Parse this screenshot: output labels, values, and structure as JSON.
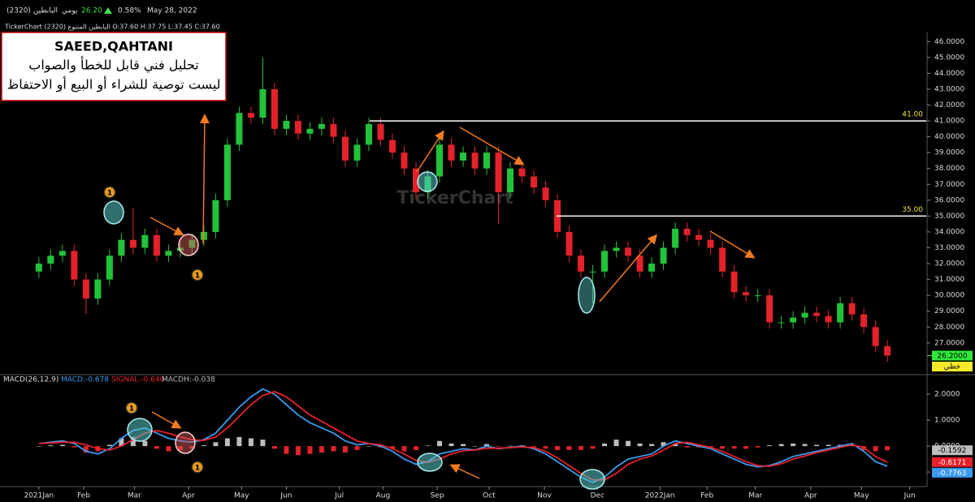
{
  "header": {
    "name": "البابطين (2320)",
    "period": "يومي",
    "price": "26.20",
    "change": "0.58%",
    "date": "May 28, 2022",
    "info": "TickerChart البابطين المتنوع (2320) O:37.60 H:37.75 L:37.45 C:37.60"
  },
  "annotations": {
    "author": "SAEED,QAHTANI",
    "line1": "تحليل فني قابل للخطأ والصواب",
    "line2": "ليست توصية للشراء أو البيع أو الاحتفاظ",
    "markers": [
      "1",
      "1",
      "1",
      "1"
    ],
    "watermark": "TickerChart"
  },
  "chart_data": [
    {
      "type": "candlestick",
      "up_color": "#22c33a",
      "down_color": "#e3222b",
      "open": [
        31.5,
        32.0,
        32.5,
        32.8,
        31.0,
        29.8,
        31.0,
        32.5,
        33.5,
        33.0,
        33.8,
        32.5,
        32.8,
        33.0,
        33.5,
        34.0,
        36.0,
        39.5,
        41.5,
        41.2,
        43.0,
        40.5,
        41.0,
        40.2,
        40.5,
        40.8,
        40.0,
        38.5,
        39.5,
        40.8,
        39.8,
        39.0,
        38.0,
        36.5,
        37.5,
        39.5,
        38.5,
        39.0,
        38.0,
        39.0,
        36.5,
        38.0,
        37.5,
        36.8,
        36.0,
        34.0,
        32.5,
        31.5,
        31.5,
        32.8,
        33.0,
        32.5,
        31.5,
        32.0,
        33.0,
        34.2,
        33.8,
        33.5,
        33.0,
        31.5,
        30.2,
        30.0,
        30.0,
        28.3,
        28.3,
        28.6,
        28.9,
        28.7,
        28.3,
        29.5,
        28.8,
        28.0,
        26.8
      ],
      "high": [
        32.4,
        32.9,
        33.2,
        33.2,
        31.4,
        31.4,
        32.9,
        33.9,
        35.5,
        34.2,
        34.2,
        33.2,
        33.4,
        33.9,
        34.4,
        36.4,
        39.9,
        41.9,
        41.9,
        45.0,
        43.4,
        41.4,
        41.4,
        40.9,
        41.2,
        41.2,
        40.4,
        39.9,
        41.2,
        41.2,
        40.2,
        39.4,
        38.4,
        37.9,
        39.9,
        39.9,
        39.4,
        39.4,
        39.4,
        39.4,
        38.4,
        38.4,
        37.9,
        37.2,
        36.4,
        34.4,
        32.9,
        31.9,
        33.2,
        33.4,
        33.4,
        32.9,
        32.4,
        33.4,
        34.6,
        34.6,
        34.2,
        33.9,
        33.4,
        31.9,
        30.6,
        30.4,
        30.4,
        28.7,
        29.0,
        29.3,
        29.3,
        29.1,
        29.9,
        29.9,
        29.2,
        28.4,
        27.2
      ],
      "low": [
        31.1,
        31.6,
        32.1,
        30.6,
        28.8,
        29.4,
        30.6,
        32.1,
        32.6,
        32.6,
        32.1,
        32.1,
        32.4,
        32.6,
        33.1,
        33.6,
        35.6,
        39.1,
        40.8,
        40.8,
        40.1,
        40.1,
        39.8,
        39.8,
        40.1,
        39.6,
        38.1,
        38.1,
        39.1,
        39.4,
        38.6,
        37.6,
        36.1,
        36.1,
        37.1,
        38.1,
        38.1,
        37.6,
        37.6,
        34.5,
        36.1,
        37.1,
        36.4,
        35.6,
        33.6,
        32.1,
        31.1,
        29.5,
        31.1,
        32.4,
        32.1,
        31.1,
        31.1,
        31.6,
        32.6,
        33.4,
        33.1,
        32.6,
        31.1,
        29.8,
        29.6,
        29.6,
        27.9,
        27.9,
        27.9,
        28.2,
        28.3,
        27.9,
        27.9,
        28.4,
        27.6,
        26.4,
        25.8
      ],
      "close": [
        32.0,
        32.5,
        32.8,
        31.0,
        29.8,
        31.0,
        32.5,
        33.5,
        33.0,
        33.8,
        32.5,
        32.8,
        33.0,
        33.5,
        34.0,
        36.0,
        39.5,
        41.5,
        41.2,
        43.0,
        40.5,
        41.0,
        40.2,
        40.5,
        40.8,
        40.0,
        38.5,
        39.5,
        40.8,
        39.8,
        39.0,
        38.0,
        36.5,
        37.5,
        39.5,
        38.5,
        39.0,
        38.0,
        39.0,
        36.5,
        38.0,
        37.5,
        36.8,
        36.0,
        34.0,
        32.5,
        31.5,
        31.5,
        32.8,
        33.0,
        32.5,
        31.5,
        32.0,
        33.0,
        34.2,
        33.8,
        33.5,
        33.0,
        31.5,
        30.2,
        30.0,
        30.0,
        28.3,
        28.3,
        28.6,
        28.9,
        28.7,
        28.3,
        29.5,
        28.8,
        28.0,
        26.8,
        26.2
      ],
      "xlim": [
        -3.3,
        75.3
      ],
      "ylim": [
        25.1,
        47.6
      ],
      "yticks": [
        {
          "value": 46,
          "label": "46.0000"
        },
        {
          "value": 45,
          "label": "45.0000"
        },
        {
          "value": 44,
          "label": "44.0000"
        },
        {
          "value": 43,
          "label": "43.0000"
        },
        {
          "value": 42,
          "label": "42.0000"
        },
        {
          "value": 41,
          "label": "41.0000"
        },
        {
          "value": 40,
          "label": "40.0000"
        },
        {
          "value": 39,
          "label": "39.0000"
        },
        {
          "value": 38,
          "label": "38.0000"
        },
        {
          "value": 37,
          "label": "37.0000"
        },
        {
          "value": 36,
          "label": "36.0000"
        },
        {
          "value": 35,
          "label": "35.0000"
        },
        {
          "value": 34,
          "label": "34.0000"
        },
        {
          "value": 33,
          "label": "33.0000"
        },
        {
          "value": 32,
          "label": "32.0000"
        },
        {
          "value": 31,
          "label": "31.0000"
        },
        {
          "value": 30,
          "label": "30.0000"
        },
        {
          "value": 29,
          "label": "29.0000"
        },
        {
          "value": 28,
          "label": "28.0000"
        },
        {
          "value": 27,
          "label": "27.0000"
        }
      ],
      "levels": [
        {
          "value": 41,
          "label": "41.00"
        },
        {
          "value": 35,
          "label": "35.00"
        }
      ],
      "last_label": "26.2000",
      "mode_label": "خطي"
    },
    {
      "type": "macd",
      "title": "MACD(26,12,9)",
      "xlim": [
        -3.3,
        75.3
      ],
      "ylim": [
        -1.56,
        2.66
      ],
      "yticks": [
        {
          "value": 2,
          "label": "2.0000"
        },
        {
          "value": 1,
          "label": "1.0000"
        },
        {
          "value": 0,
          "label": "0.0000"
        },
        {
          "value": -1,
          "label": "-1.0000"
        }
      ],
      "xticks": [
        {
          "value": 0,
          "label": "2021Jan"
        },
        {
          "value": 3.8,
          "label": "Feb"
        },
        {
          "value": 8.1,
          "label": "Mar"
        },
        {
          "value": 12.7,
          "label": "Apr"
        },
        {
          "value": 17.2,
          "label": "May"
        },
        {
          "value": 21.0,
          "label": "Jun"
        },
        {
          "value": 25.5,
          "label": "Jul"
        },
        {
          "value": 29.2,
          "label": "Aug"
        },
        {
          "value": 33.8,
          "label": "Sep"
        },
        {
          "value": 38.2,
          "label": "Oct"
        },
        {
          "value": 42.9,
          "label": "Nov"
        },
        {
          "value": 47.4,
          "label": "Dec"
        },
        {
          "value": 52.7,
          "label": "2022Jan"
        },
        {
          "value": 56.7,
          "label": "Feb"
        },
        {
          "value": 60.8,
          "label": "Mar"
        },
        {
          "value": 65.5,
          "label": "Apr"
        },
        {
          "value": 69.8,
          "label": "May"
        },
        {
          "value": 73.9,
          "label": "Jun"
        }
      ],
      "series": [
        {
          "legend": "MACD:-0.678",
          "kind": "line",
          "color": "#3a9bef",
          "last_label": "-0.7763",
          "values": [
            0.1,
            0.15,
            0.2,
            0.1,
            -0.2,
            -0.3,
            -0.1,
            0.3,
            0.6,
            0.7,
            0.5,
            0.3,
            0.2,
            0.15,
            0.25,
            0.5,
            1.0,
            1.5,
            1.9,
            2.2,
            2.0,
            1.6,
            1.2,
            0.9,
            0.7,
            0.5,
            0.2,
            0.05,
            0.1,
            0.0,
            -0.2,
            -0.5,
            -0.7,
            -0.6,
            -0.3,
            -0.2,
            -0.1,
            -0.15,
            0.0,
            -0.1,
            -0.05,
            0.0,
            -0.1,
            -0.3,
            -0.6,
            -0.9,
            -1.2,
            -1.4,
            -1.2,
            -0.8,
            -0.5,
            -0.4,
            -0.3,
            0.0,
            0.2,
            0.1,
            0.0,
            -0.1,
            -0.3,
            -0.5,
            -0.7,
            -0.8,
            -0.75,
            -0.6,
            -0.4,
            -0.3,
            -0.2,
            -0.1,
            0.0,
            0.1,
            -0.2,
            -0.6,
            -0.7763
          ]
        },
        {
          "legend": "SIGNAL:-0.640",
          "kind": "line",
          "color": "#e8202a",
          "last_label": "-0.6171",
          "values": [
            0.1,
            0.12,
            0.15,
            0.15,
            0.05,
            -0.1,
            -0.15,
            0.0,
            0.25,
            0.5,
            0.6,
            0.5,
            0.35,
            0.25,
            0.22,
            0.35,
            0.7,
            1.15,
            1.6,
            1.95,
            2.1,
            1.9,
            1.55,
            1.2,
            0.95,
            0.7,
            0.45,
            0.2,
            0.1,
            0.05,
            -0.1,
            -0.3,
            -0.55,
            -0.62,
            -0.5,
            -0.3,
            -0.18,
            -0.15,
            -0.08,
            -0.08,
            -0.06,
            -0.03,
            -0.06,
            -0.2,
            -0.45,
            -0.75,
            -1.05,
            -1.3,
            -1.3,
            -1.05,
            -0.7,
            -0.5,
            -0.38,
            -0.15,
            0.1,
            0.15,
            0.05,
            -0.05,
            -0.2,
            -0.4,
            -0.6,
            -0.75,
            -0.78,
            -0.68,
            -0.5,
            -0.38,
            -0.25,
            -0.15,
            -0.05,
            0.05,
            -0.05,
            -0.4,
            -0.6171
          ]
        },
        {
          "legend": "MACDH:-0.038",
          "kind": "histogram",
          "color": "#bdbdbd",
          "down_color": "#e3222b",
          "last_label": "-0.1592",
          "values": [
            0,
            0.03,
            0.05,
            -0.05,
            -0.25,
            -0.2,
            0.05,
            0.3,
            0.35,
            0.2,
            -0.1,
            -0.2,
            -0.15,
            -0.1,
            0.03,
            0.15,
            0.3,
            0.35,
            0.3,
            0.25,
            -0.1,
            -0.3,
            -0.35,
            -0.3,
            -0.25,
            -0.2,
            -0.25,
            -0.15,
            0,
            -0.05,
            -0.1,
            -0.2,
            -0.15,
            0.02,
            0.2,
            0.1,
            0.08,
            0,
            0.08,
            -0.02,
            0.01,
            0.03,
            -0.04,
            -0.1,
            -0.15,
            -0.15,
            -0.15,
            -0.1,
            0.1,
            0.25,
            0.2,
            0.1,
            0.08,
            0.15,
            0.1,
            -0.05,
            -0.05,
            -0.05,
            -0.1,
            -0.1,
            -0.1,
            -0.05,
            0.03,
            0.08,
            0.1,
            0.08,
            0.05,
            0.05,
            0.05,
            0.05,
            -0.15,
            -0.2,
            -0.1592
          ]
        }
      ]
    }
  ]
}
